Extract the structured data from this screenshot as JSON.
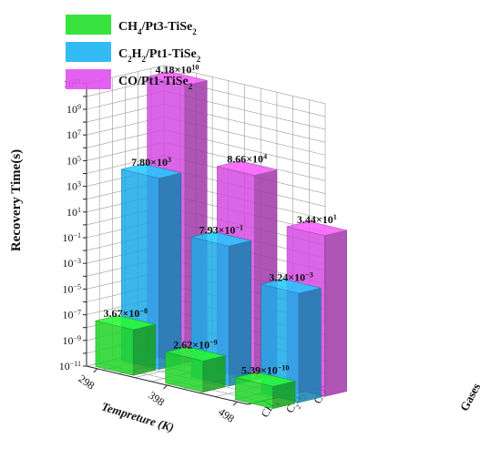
{
  "chart_data": {
    "type": "bar3d",
    "ylabel": "Recovery Time(s)",
    "xlabel": "Tempreture (K)",
    "zlabel": "Gases",
    "y_scale": "log",
    "ylim_exp": [
      -11,
      11
    ],
    "temperatures": [
      "298",
      "398",
      "498"
    ],
    "gases": [
      {
        "key": "CO",
        "sym": "CO"
      },
      {
        "key": "C2H2",
        "sym": "C",
        "sub1": "2",
        "sym2": "H",
        "sub2": "2"
      },
      {
        "key": "CH4",
        "sym": "CH",
        "sub1": "4"
      }
    ],
    "legend": [
      {
        "pre": "CH",
        "sub1": "4",
        "mid": "/Pt3-TiSe",
        "sub2": "2",
        "color": "#22e02a"
      },
      {
        "pre": "C",
        "sub1": "2",
        "mid": "H",
        "sub2": "2",
        "post": "/Pt1-TiSe",
        "sub3": "2",
        "color": "#1eb4f4"
      },
      {
        "pre": "CO/Pt1-TiSe",
        "sub1": "2",
        "color": "#e050ee"
      }
    ],
    "series": [
      {
        "name": "CH4/Pt3-TiSe2",
        "gas": "CH4",
        "color": "#22e02a",
        "values": [
          3.67e-08,
          2.62e-09,
          5.39e-10
        ],
        "labels": [
          [
            "3.67×10",
            "-8"
          ],
          [
            "2.62×10",
            "-9"
          ],
          [
            "5.39×10",
            "-10"
          ]
        ]
      },
      {
        "name": "C2H2/Pt1-TiSe2",
        "gas": "C2H2",
        "color": "#1eb4f4",
        "values": [
          7800.0,
          0.793,
          0.00324
        ],
        "labels": [
          [
            "7.80×10",
            "3"
          ],
          [
            "7.93×10",
            "-1"
          ],
          [
            "3.24×10",
            "-3"
          ]
        ]
      },
      {
        "name": "CO/Pt1-TiSe2",
        "gas": "CO",
        "color": "#e050ee",
        "values": [
          41800000000.0,
          86600.0,
          34.4
        ],
        "labels": [
          [
            "4.18×10",
            "10"
          ],
          [
            "8.66×10",
            "4"
          ],
          [
            "3.44×10",
            "1"
          ]
        ]
      }
    ]
  }
}
